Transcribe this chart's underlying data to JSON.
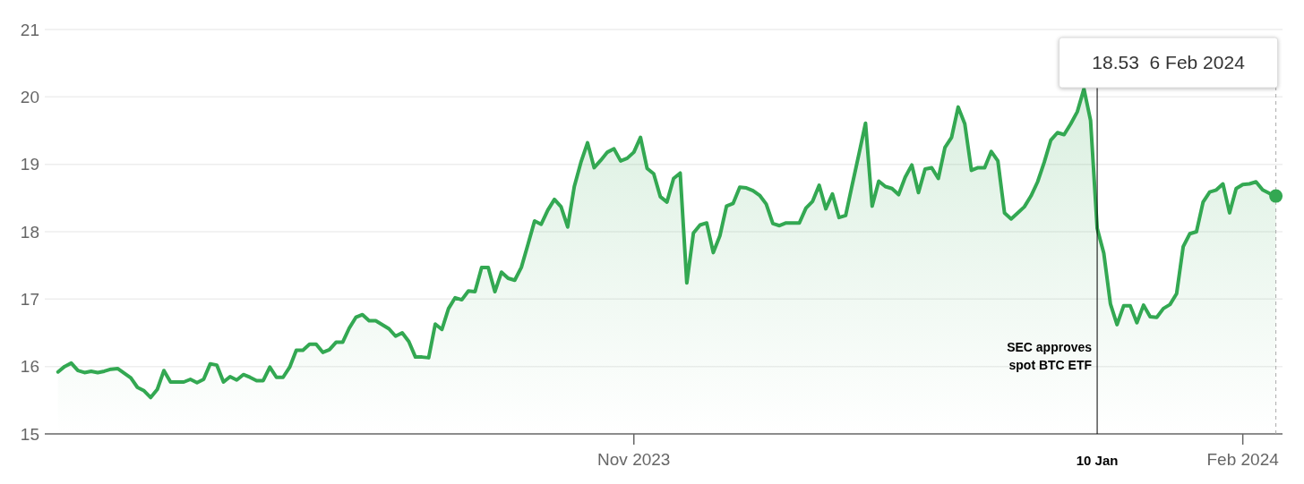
{
  "chart_data": {
    "type": "area",
    "color": "#33a852",
    "x": [
      "2023-08-06",
      "2023-08-07",
      "2023-08-08",
      "2023-08-09",
      "2023-08-10",
      "2023-08-11",
      "2023-08-12",
      "2023-08-13",
      "2023-08-14",
      "2023-08-15",
      "2023-08-16",
      "2023-08-17",
      "2023-08-18",
      "2023-08-19",
      "2023-08-20",
      "2023-08-21",
      "2023-08-22",
      "2023-08-23",
      "2023-08-24",
      "2023-08-25",
      "2023-08-26",
      "2023-08-27",
      "2023-08-28",
      "2023-08-29",
      "2023-08-30",
      "2023-08-31",
      "2023-09-01",
      "2023-09-02",
      "2023-09-03",
      "2023-09-04",
      "2023-09-05",
      "2023-09-06",
      "2023-09-07",
      "2023-09-08",
      "2023-09-09",
      "2023-09-10",
      "2023-09-11",
      "2023-09-12",
      "2023-09-13",
      "2023-09-14",
      "2023-09-15",
      "2023-09-16",
      "2023-09-17",
      "2023-09-18",
      "2023-09-19",
      "2023-09-20",
      "2023-09-21",
      "2023-09-22",
      "2023-09-23",
      "2023-09-24",
      "2023-09-25",
      "2023-09-26",
      "2023-09-27",
      "2023-09-28",
      "2023-09-29",
      "2023-09-30",
      "2023-10-01",
      "2023-10-02",
      "2023-10-03",
      "2023-10-04",
      "2023-10-05",
      "2023-10-06",
      "2023-10-07",
      "2023-10-08",
      "2023-10-09",
      "2023-10-10",
      "2023-10-11",
      "2023-10-12",
      "2023-10-13",
      "2023-10-14",
      "2023-10-15",
      "2023-10-16",
      "2023-10-17",
      "2023-10-18",
      "2023-10-19",
      "2023-10-20",
      "2023-10-21",
      "2023-10-22",
      "2023-10-23",
      "2023-10-24",
      "2023-10-25",
      "2023-10-26",
      "2023-10-27",
      "2023-10-28",
      "2023-10-29",
      "2023-10-30",
      "2023-10-31",
      "2023-11-01",
      "2023-11-02",
      "2023-11-03",
      "2023-11-04",
      "2023-11-05",
      "2023-11-06",
      "2023-11-07",
      "2023-11-08",
      "2023-11-09",
      "2023-11-10",
      "2023-11-11",
      "2023-11-12",
      "2023-11-13",
      "2023-11-14",
      "2023-11-15",
      "2023-11-16",
      "2023-11-17",
      "2023-11-18",
      "2023-11-19",
      "2023-11-20",
      "2023-11-21",
      "2023-11-22",
      "2023-11-23",
      "2023-11-24",
      "2023-11-25",
      "2023-11-26",
      "2023-11-27",
      "2023-11-28",
      "2023-11-29",
      "2023-11-30",
      "2023-12-01",
      "2023-12-02",
      "2023-12-03",
      "2023-12-04",
      "2023-12-05",
      "2023-12-06",
      "2023-12-07",
      "2023-12-08",
      "2023-12-09",
      "2023-12-10",
      "2023-12-11",
      "2023-12-12",
      "2023-12-13",
      "2023-12-14",
      "2023-12-15",
      "2023-12-16",
      "2023-12-17",
      "2023-12-18",
      "2023-12-19",
      "2023-12-20",
      "2023-12-21",
      "2023-12-22",
      "2023-12-23",
      "2023-12-24",
      "2023-12-25",
      "2023-12-26",
      "2023-12-27",
      "2023-12-28",
      "2023-12-29",
      "2023-12-30",
      "2023-12-31",
      "2024-01-01",
      "2024-01-02",
      "2024-01-03",
      "2024-01-04",
      "2024-01-05",
      "2024-01-06",
      "2024-01-07",
      "2024-01-08",
      "2024-01-09",
      "2024-01-10",
      "2024-01-11",
      "2024-01-12",
      "2024-01-13",
      "2024-01-14",
      "2024-01-15",
      "2024-01-16",
      "2024-01-17",
      "2024-01-18",
      "2024-01-19",
      "2024-01-20",
      "2024-01-21",
      "2024-01-22",
      "2024-01-23",
      "2024-01-24",
      "2024-01-25",
      "2024-01-26",
      "2024-01-27",
      "2024-01-28",
      "2024-01-29",
      "2024-01-30",
      "2024-01-31",
      "2024-02-01",
      "2024-02-02",
      "2024-02-03",
      "2024-02-04",
      "2024-02-05",
      "2024-02-06"
    ],
    "values": [
      15.92,
      16.0,
      16.05,
      15.94,
      15.91,
      15.93,
      15.91,
      15.93,
      15.96,
      15.97,
      15.9,
      15.83,
      15.69,
      15.64,
      15.54,
      15.66,
      15.94,
      15.77,
      15.77,
      15.77,
      15.81,
      15.76,
      15.81,
      16.04,
      16.02,
      15.77,
      15.85,
      15.8,
      15.88,
      15.84,
      15.79,
      15.79,
      15.99,
      15.84,
      15.84,
      15.99,
      16.24,
      16.24,
      16.33,
      16.33,
      16.21,
      16.25,
      16.36,
      16.36,
      16.57,
      16.73,
      16.77,
      16.68,
      16.68,
      16.62,
      16.56,
      16.45,
      16.5,
      16.37,
      16.14,
      16.14,
      16.13,
      16.63,
      16.55,
      16.86,
      17.02,
      16.99,
      17.12,
      17.11,
      17.47,
      17.47,
      17.11,
      17.4,
      17.31,
      17.28,
      17.47,
      17.81,
      18.16,
      18.11,
      18.32,
      18.48,
      18.37,
      18.07,
      18.67,
      19.03,
      19.32,
      18.95,
      19.06,
      19.18,
      19.23,
      19.05,
      19.09,
      19.18,
      19.4,
      18.94,
      18.86,
      18.52,
      18.44,
      18.79,
      18.87,
      17.24,
      17.98,
      18.1,
      18.13,
      17.69,
      17.94,
      18.38,
      18.42,
      18.66,
      18.65,
      18.61,
      18.54,
      18.41,
      18.12,
      18.09,
      18.13,
      18.13,
      18.13,
      18.35,
      18.45,
      18.69,
      18.34,
      18.56,
      18.21,
      18.24,
      18.7,
      19.15,
      19.61,
      18.38,
      18.75,
      18.67,
      18.64,
      18.55,
      18.81,
      18.99,
      18.58,
      18.93,
      18.95,
      18.79,
      19.25,
      19.4,
      19.85,
      19.6,
      18.91,
      18.95,
      18.95,
      19.19,
      19.05,
      18.28,
      18.19,
      18.28,
      18.37,
      18.53,
      18.74,
      19.03,
      19.36,
      19.47,
      19.44,
      19.6,
      19.78,
      20.12,
      19.65,
      18.05,
      17.68,
      16.93,
      16.62,
      16.9,
      16.9,
      16.65,
      16.91,
      16.74,
      16.73,
      16.86,
      16.92,
      17.08,
      17.78,
      17.97,
      18.0,
      18.44,
      18.59,
      18.62,
      18.71,
      18.28,
      18.64,
      18.7,
      18.71,
      18.74,
      18.62,
      18.57,
      18.53
    ],
    "xlim": [
      "2023-08-04",
      "2024-02-07"
    ],
    "xticks": [
      {
        "value": "2023-11-01",
        "label": "Nov 2023"
      },
      {
        "value": "2024-01-10",
        "label": "10 Jan"
      },
      {
        "value": "2024-02-01",
        "label": "Feb 2024"
      }
    ],
    "ylim": [
      15,
      21
    ],
    "yticks": [
      15,
      16,
      17,
      18,
      19,
      20,
      21
    ],
    "grid": "y",
    "marker": "none",
    "ref_lines": [
      {
        "axis": "x",
        "value": "2024-01-10",
        "label": "SEC approves spot BTC ETF",
        "color": "#000000"
      },
      {
        "axis": "x",
        "value": "2024-02-06",
        "label": null,
        "color": "#aaaaaa",
        "line_style": "dashed"
      }
    ],
    "annotations": [
      "18.53  6 Feb 2024"
    ]
  }
}
